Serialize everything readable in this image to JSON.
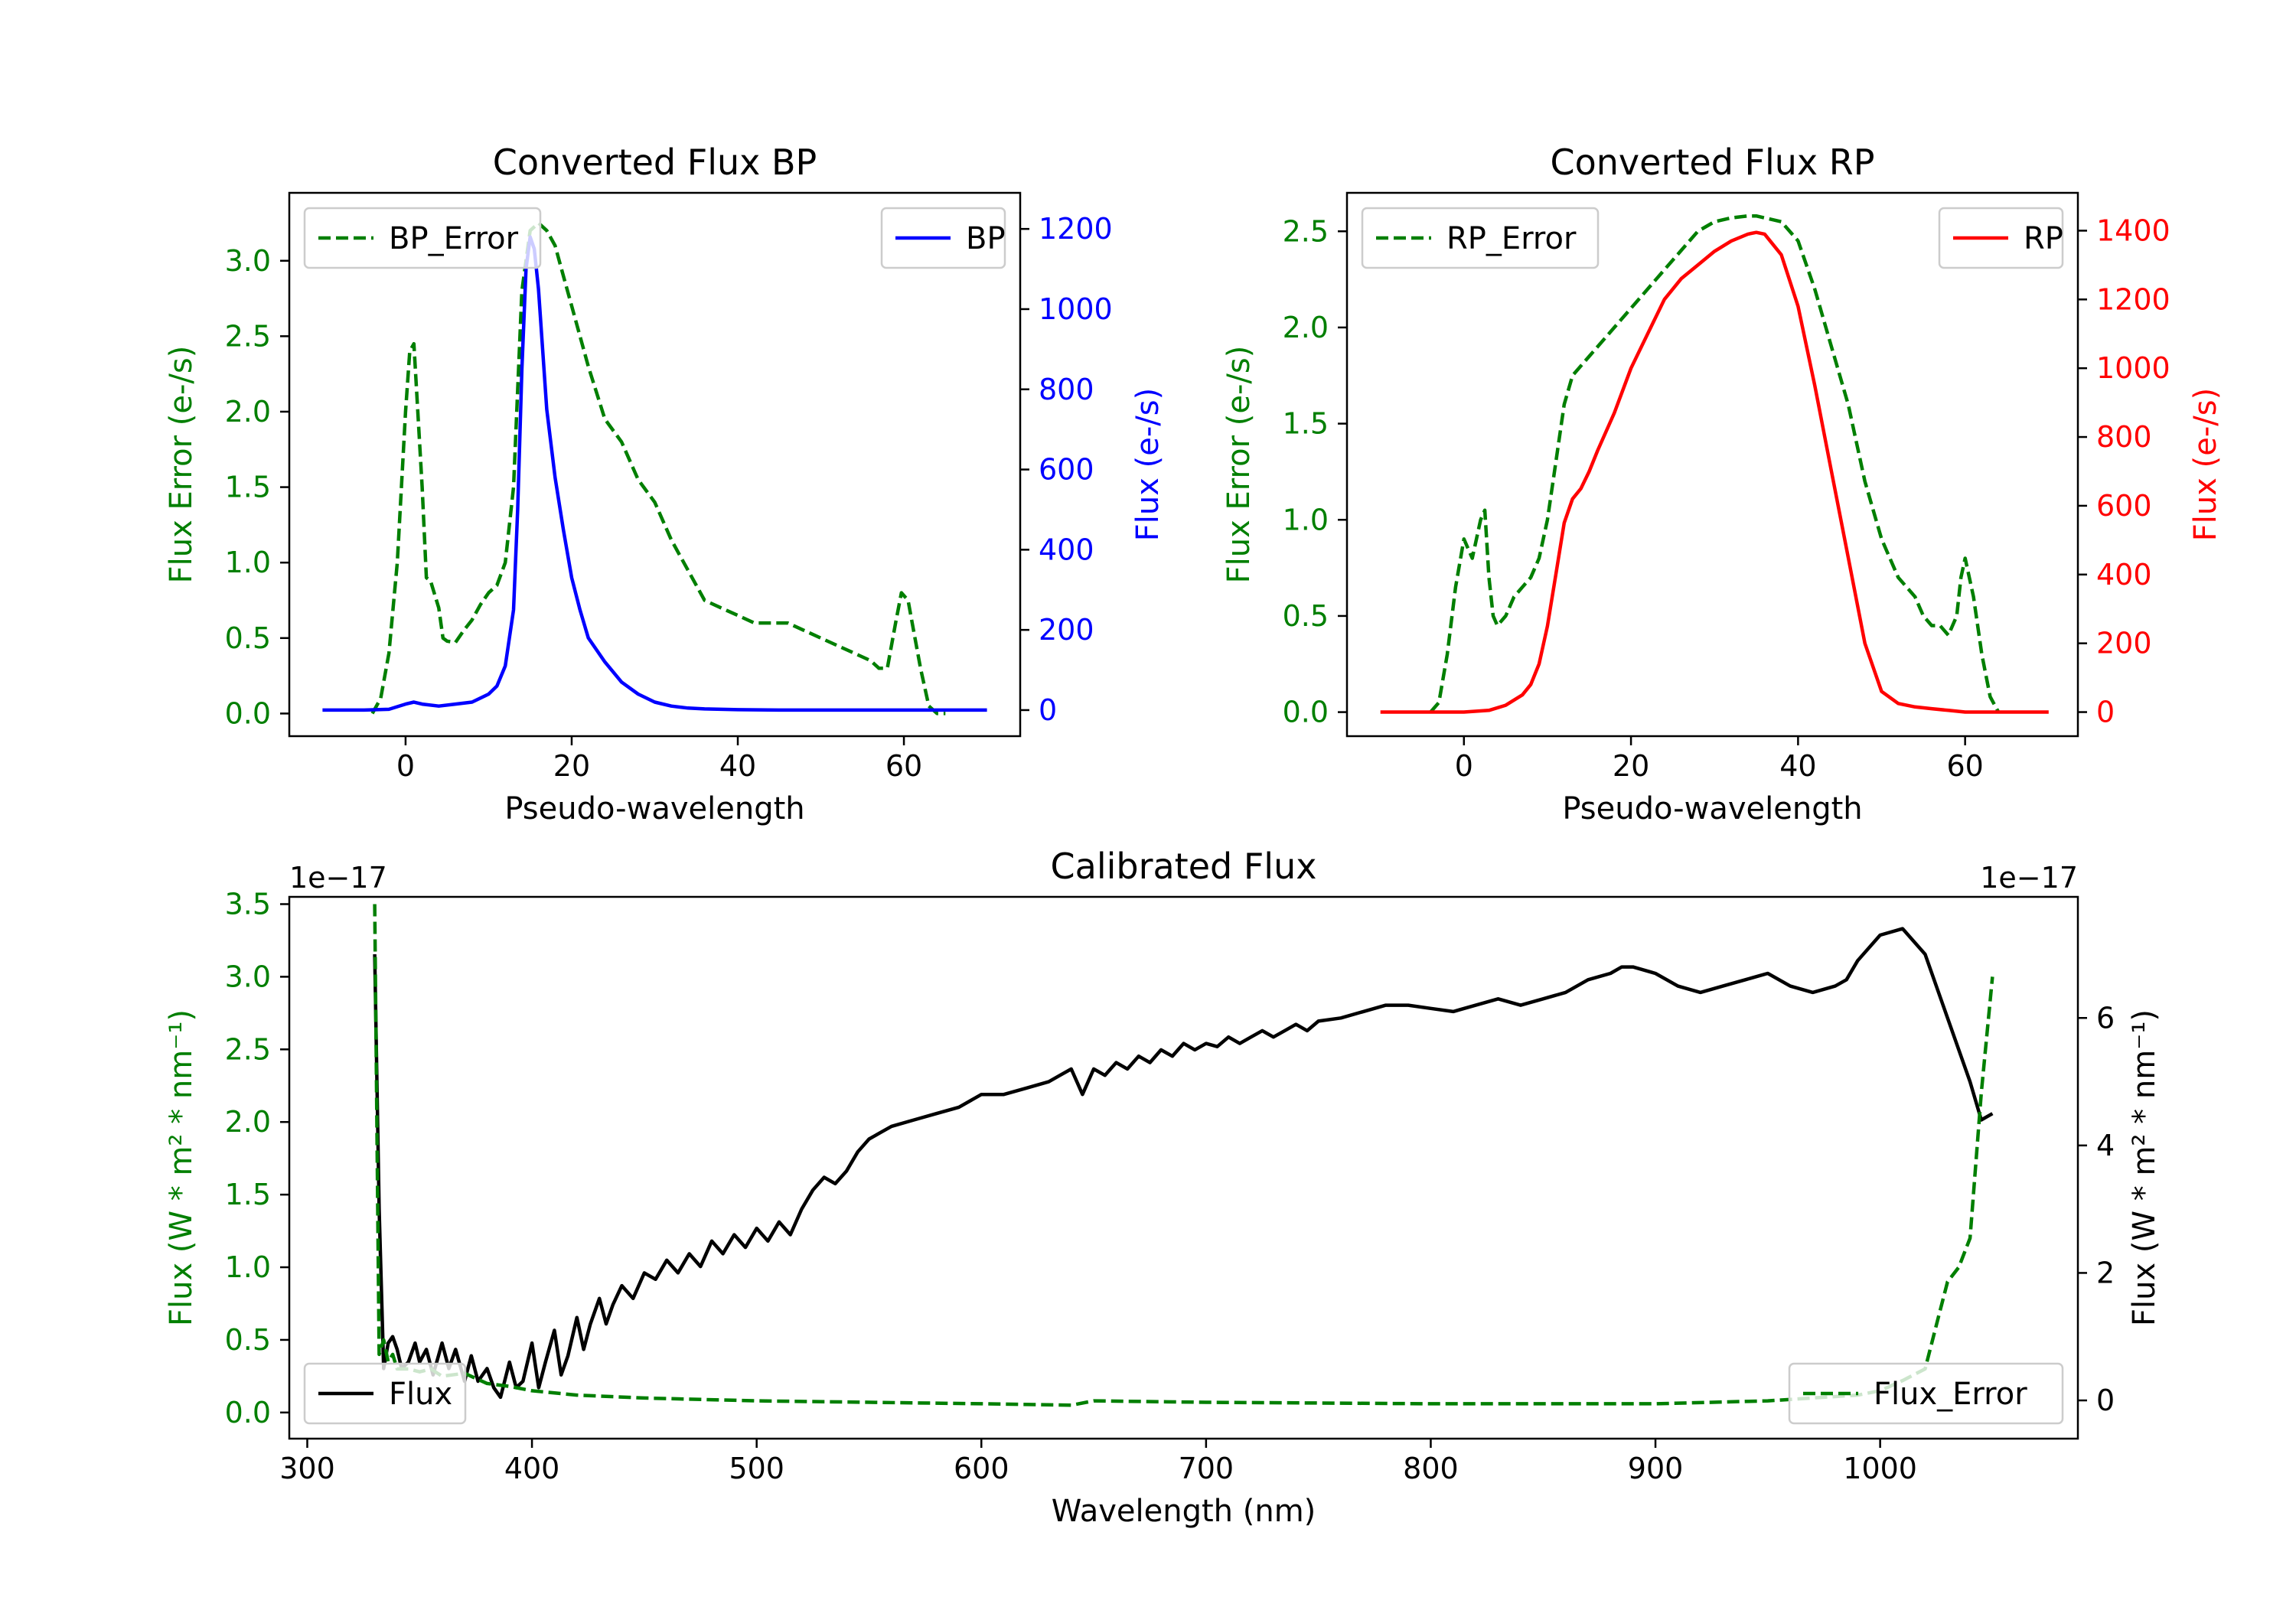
{
  "colors": {
    "green": "#007f00",
    "blue": "#0000ff",
    "red": "#ff0000",
    "black": "#000000"
  },
  "chart_data": [
    {
      "type": "line",
      "title": "Converted Flux BP",
      "xlabel": "Pseudo-wavelength",
      "ylabel_left": "Flux Error (e-/s)",
      "ylabel_right": "Flux (e-/s)",
      "xlim": [
        -14,
        74
      ],
      "ylim_left": [
        -0.15,
        3.45
      ],
      "ylim_right": [
        -65,
        1290
      ],
      "xticks": [
        0,
        20,
        40,
        60
      ],
      "yticks_left": [
        0.0,
        0.5,
        1.0,
        1.5,
        2.0,
        2.5,
        3.0
      ],
      "yticks_right": [
        0,
        200,
        400,
        600,
        800,
        1000,
        1200
      ],
      "series": [
        {
          "name": "BP_Error",
          "axis": "left",
          "style": "dashed",
          "color": "#007f00",
          "x": [
            -4,
            -3,
            -2,
            -1,
            0,
            0.5,
            1,
            2,
            2.5,
            3,
            4,
            4.5,
            5,
            6,
            7,
            8,
            9,
            10,
            11,
            12,
            13,
            14,
            15,
            16,
            17,
            18,
            19,
            20,
            22,
            24,
            26,
            28,
            30,
            32,
            34,
            36,
            38,
            40,
            42,
            44,
            46,
            48,
            50,
            52,
            54,
            56,
            57,
            58,
            59,
            59.7,
            60.5,
            61,
            62,
            63,
            64,
            65
          ],
          "y": [
            0,
            0.1,
            0.4,
            1.0,
            2.0,
            2.4,
            2.45,
            1.5,
            0.9,
            0.88,
            0.7,
            0.5,
            0.48,
            0.47,
            0.55,
            0.62,
            0.72,
            0.8,
            0.85,
            1.0,
            1.5,
            2.8,
            3.2,
            3.25,
            3.2,
            3.1,
            2.9,
            2.7,
            2.3,
            1.95,
            1.8,
            1.55,
            1.4,
            1.15,
            0.95,
            0.75,
            0.7,
            0.65,
            0.6,
            0.6,
            0.6,
            0.55,
            0.5,
            0.45,
            0.4,
            0.35,
            0.3,
            0.3,
            0.6,
            0.8,
            0.75,
            0.6,
            0.3,
            0.05,
            0.0,
            0.0
          ]
        },
        {
          "name": "BP",
          "axis": "right",
          "style": "solid",
          "color": "#0000ff",
          "x": [
            -10,
            -5,
            -2,
            0,
            1,
            2,
            4,
            6,
            8,
            10,
            11,
            12,
            13,
            13.5,
            14,
            14.5,
            15,
            15.5,
            16,
            16.5,
            17,
            18,
            19,
            20,
            21,
            22,
            24,
            26,
            28,
            30,
            32,
            34,
            36,
            38,
            40,
            45,
            50,
            55,
            60,
            65,
            70
          ],
          "y": [
            0,
            0,
            2,
            15,
            20,
            15,
            10,
            15,
            20,
            40,
            60,
            110,
            250,
            500,
            850,
            1100,
            1180,
            1150,
            1050,
            900,
            750,
            580,
            450,
            330,
            250,
            180,
            120,
            70,
            40,
            20,
            10,
            5,
            3,
            2,
            1,
            0,
            0,
            0,
            0,
            0,
            0
          ]
        }
      ],
      "legends": [
        {
          "label": "BP_Error",
          "position": "upper left"
        },
        {
          "label": "BP",
          "position": "upper right"
        }
      ]
    },
    {
      "type": "line",
      "title": "Converted Flux RP",
      "xlabel": "Pseudo-wavelength",
      "ylabel_left": "Flux Error (e-/s)",
      "ylabel_right": "Flux (e-/s)",
      "xlim": [
        -14,
        73.5
      ],
      "ylim_left": [
        -0.125,
        2.7
      ],
      "ylim_right": [
        -70,
        1510
      ],
      "xticks": [
        0,
        20,
        40,
        60
      ],
      "yticks_left": [
        0.0,
        0.5,
        1.0,
        1.5,
        2.0,
        2.5
      ],
      "yticks_right": [
        0,
        200,
        400,
        600,
        800,
        1000,
        1200,
        1400
      ],
      "series": [
        {
          "name": "RP_Error",
          "axis": "left",
          "style": "dashed",
          "color": "#007f00",
          "x": [
            -4,
            -3,
            -2,
            -1,
            0,
            1,
            2,
            2.5,
            3,
            3.5,
            4,
            5,
            6,
            7,
            8,
            9,
            10,
            11,
            12,
            13,
            14,
            15,
            16,
            18,
            20,
            22,
            24,
            26,
            28,
            30,
            32,
            34,
            35,
            36,
            38,
            40,
            42,
            44,
            46,
            48,
            50,
            52,
            54,
            55,
            56,
            57,
            58,
            59,
            59.5,
            60,
            61,
            62,
            63,
            64
          ],
          "y": [
            0,
            0.05,
            0.3,
            0.65,
            0.9,
            0.8,
            1.0,
            1.05,
            0.7,
            0.5,
            0.45,
            0.5,
            0.6,
            0.65,
            0.7,
            0.8,
            1.0,
            1.3,
            1.6,
            1.75,
            1.8,
            1.85,
            1.9,
            2.0,
            2.1,
            2.2,
            2.3,
            2.4,
            2.5,
            2.55,
            2.57,
            2.58,
            2.58,
            2.57,
            2.55,
            2.45,
            2.2,
            1.9,
            1.6,
            1.2,
            0.9,
            0.7,
            0.6,
            0.5,
            0.45,
            0.45,
            0.4,
            0.5,
            0.7,
            0.8,
            0.6,
            0.3,
            0.08,
            0.0
          ]
        },
        {
          "name": "RP",
          "axis": "right",
          "style": "solid",
          "color": "#ff0000",
          "x": [
            -10,
            -5,
            0,
            3,
            5,
            7,
            8,
            9,
            10,
            11,
            12,
            13,
            14,
            15,
            16,
            18,
            20,
            22,
            24,
            26,
            28,
            30,
            32,
            34,
            35,
            36,
            38,
            40,
            42,
            44,
            46,
            48,
            50,
            52,
            54,
            56,
            58,
            60,
            65,
            70
          ],
          "y": [
            0,
            0,
            0,
            5,
            20,
            50,
            80,
            140,
            250,
            400,
            550,
            620,
            650,
            700,
            760,
            870,
            1000,
            1100,
            1200,
            1260,
            1300,
            1340,
            1370,
            1390,
            1395,
            1390,
            1330,
            1180,
            950,
            700,
            450,
            200,
            60,
            25,
            15,
            10,
            5,
            0,
            0,
            0
          ]
        }
      ],
      "legends": [
        {
          "label": "RP_Error",
          "position": "upper left"
        },
        {
          "label": "RP",
          "position": "upper right"
        }
      ]
    },
    {
      "type": "line",
      "title": "Calibrated Flux",
      "xlabel": "Wavelength (nm)",
      "ylabel_left": "Flux (W * m² * nm⁻¹)",
      "ylabel_right": "Flux (W * m² * nm⁻¹)",
      "offset_left": "1e−17",
      "offset_right": "1e−17",
      "xlim": [
        292,
        1088
      ],
      "ylim_left": [
        -0.18,
        3.55
      ],
      "ylim_right": [
        -0.6,
        7.9
      ],
      "xticks": [
        300,
        400,
        500,
        600,
        700,
        800,
        900,
        1000
      ],
      "yticks_left": [
        0.0,
        0.5,
        1.0,
        1.5,
        2.0,
        2.5,
        3.0,
        3.5
      ],
      "yticks_right": [
        0,
        2,
        4,
        6
      ],
      "series": [
        {
          "name": "Flux",
          "axis": "right",
          "style": "solid",
          "color": "#000000",
          "x": [
            330,
            332,
            334,
            336,
            338,
            340,
            342,
            345,
            348,
            350,
            353,
            356,
            360,
            363,
            366,
            370,
            373,
            376,
            380,
            383,
            386,
            390,
            393,
            396,
            400,
            403,
            406,
            410,
            413,
            416,
            420,
            423,
            426,
            430,
            433,
            436,
            440,
            445,
            450,
            455,
            460,
            465,
            470,
            475,
            480,
            485,
            490,
            495,
            500,
            505,
            510,
            515,
            520,
            525,
            530,
            535,
            540,
            545,
            550,
            555,
            560,
            570,
            580,
            590,
            600,
            610,
            620,
            630,
            635,
            640,
            645,
            650,
            655,
            660,
            665,
            670,
            675,
            680,
            685,
            690,
            695,
            700,
            705,
            710,
            715,
            720,
            725,
            730,
            735,
            740,
            745,
            750,
            760,
            770,
            780,
            790,
            800,
            810,
            820,
            830,
            840,
            850,
            860,
            870,
            880,
            885,
            890,
            900,
            910,
            920,
            930,
            940,
            950,
            960,
            970,
            980,
            985,
            990,
            1000,
            1010,
            1020,
            1030,
            1040,
            1045,
            1050
          ],
          "y": [
            7.0,
            3.0,
            0.5,
            0.9,
            1.0,
            0.8,
            0.5,
            0.6,
            0.9,
            0.6,
            0.8,
            0.4,
            0.9,
            0.5,
            0.8,
            0.3,
            0.7,
            0.3,
            0.5,
            0.2,
            0.05,
            0.6,
            0.2,
            0.3,
            0.9,
            0.2,
            0.6,
            1.1,
            0.4,
            0.7,
            1.3,
            0.8,
            1.2,
            1.6,
            1.2,
            1.5,
            1.8,
            1.6,
            2.0,
            1.9,
            2.2,
            2.0,
            2.3,
            2.1,
            2.5,
            2.3,
            2.6,
            2.4,
            2.7,
            2.5,
            2.8,
            2.6,
            3.0,
            3.3,
            3.5,
            3.4,
            3.6,
            3.9,
            4.1,
            4.2,
            4.3,
            4.4,
            4.5,
            4.6,
            4.8,
            4.8,
            4.9,
            5.0,
            5.1,
            5.2,
            4.8,
            5.2,
            5.1,
            5.3,
            5.2,
            5.4,
            5.3,
            5.5,
            5.4,
            5.6,
            5.5,
            5.6,
            5.55,
            5.7,
            5.6,
            5.7,
            5.8,
            5.7,
            5.8,
            5.9,
            5.8,
            5.95,
            6.0,
            6.1,
            6.2,
            6.2,
            6.15,
            6.1,
            6.2,
            6.3,
            6.2,
            6.3,
            6.4,
            6.6,
            6.7,
            6.8,
            6.8,
            6.7,
            6.5,
            6.4,
            6.5,
            6.6,
            6.7,
            6.5,
            6.4,
            6.5,
            6.6,
            6.9,
            7.3,
            7.4,
            7.0,
            6.0,
            5.0,
            4.4,
            4.5
          ]
        },
        {
          "name": "Flux_Error",
          "axis": "left",
          "style": "dashed",
          "color": "#007f00",
          "x": [
            330,
            332,
            334,
            336,
            338,
            340,
            345,
            350,
            355,
            360,
            370,
            380,
            390,
            400,
            420,
            450,
            500,
            600,
            640,
            650,
            700,
            800,
            900,
            950,
            990,
            1000,
            1010,
            1020,
            1025,
            1030,
            1035,
            1040,
            1045,
            1050
          ],
          "y": [
            3.5,
            0.4,
            0.5,
            0.35,
            0.4,
            0.3,
            0.3,
            0.28,
            0.3,
            0.25,
            0.27,
            0.2,
            0.18,
            0.15,
            0.12,
            0.1,
            0.08,
            0.06,
            0.05,
            0.08,
            0.07,
            0.06,
            0.06,
            0.08,
            0.12,
            0.15,
            0.22,
            0.3,
            0.6,
            0.9,
            1.0,
            1.2,
            2.2,
            3.0
          ]
        }
      ],
      "legends": [
        {
          "label": "Flux",
          "position": "lower left"
        },
        {
          "label": "Flux_Error",
          "position": "lower right"
        }
      ]
    }
  ]
}
